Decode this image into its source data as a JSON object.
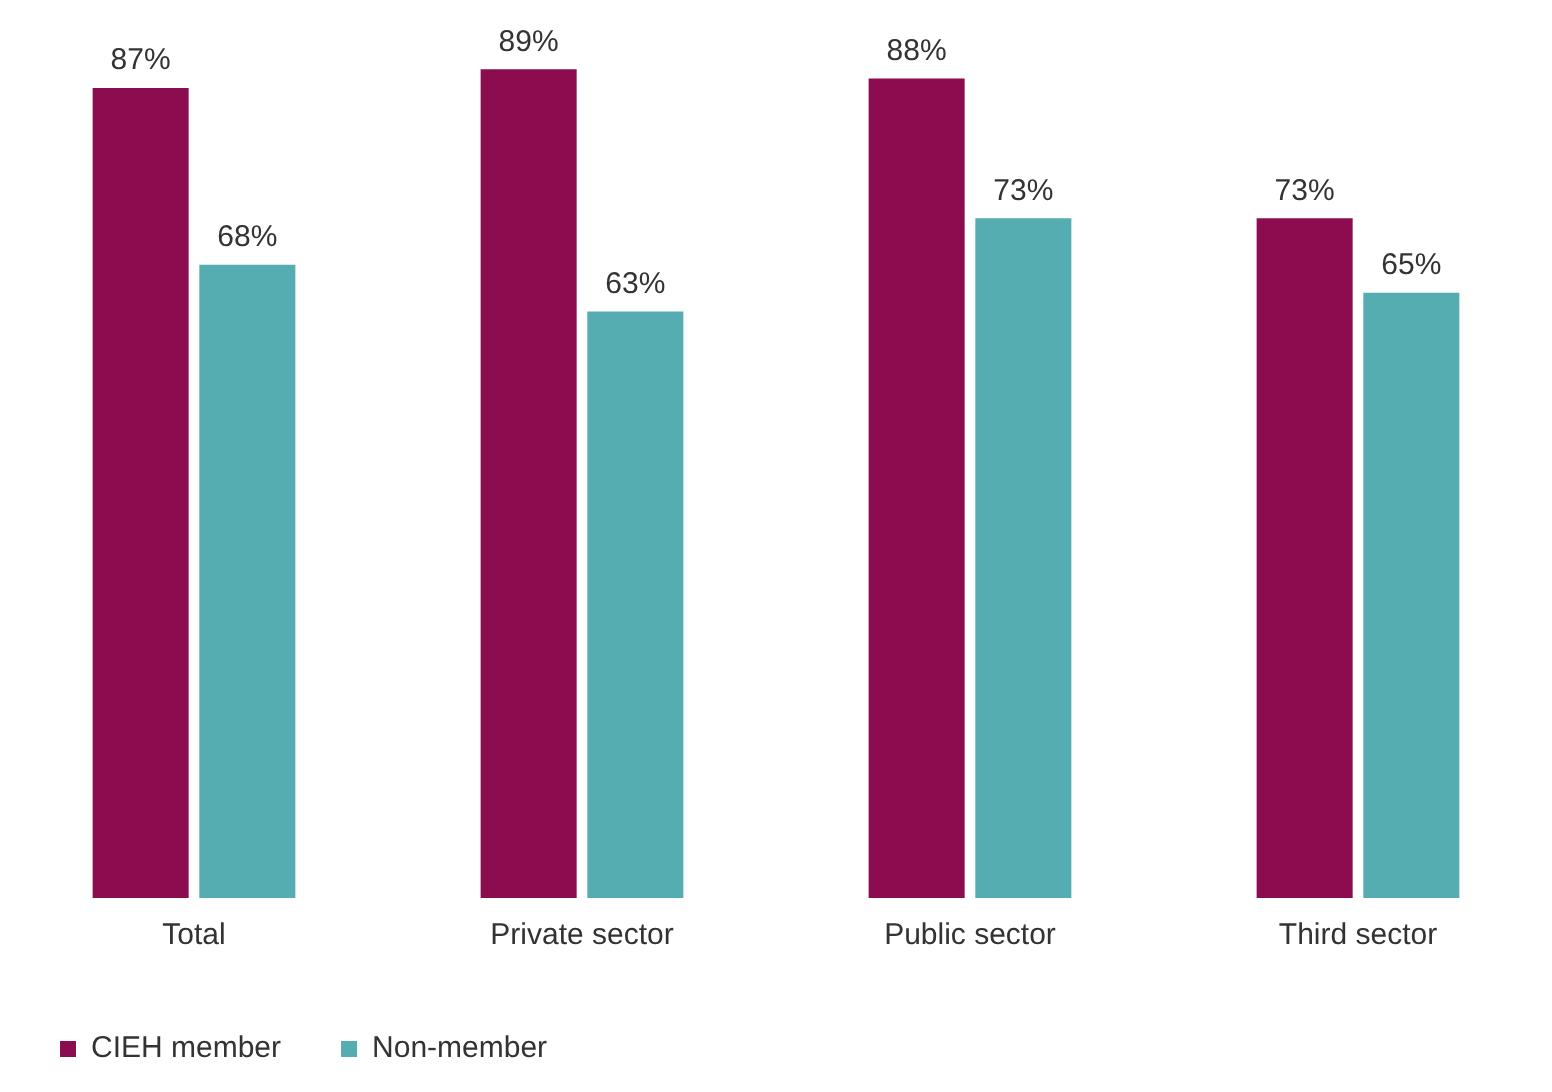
{
  "chart_data": {
    "type": "bar",
    "categories": [
      "Total",
      "Private sector",
      "Public sector",
      "Third sector"
    ],
    "series": [
      {
        "name": "CIEH member",
        "color": "#8b0d4f",
        "values": [
          87,
          89,
          88,
          73
        ],
        "value_labels": [
          "87%",
          "89%",
          "88%",
          "73%"
        ]
      },
      {
        "name": "Non-member",
        "color": "#55adb1",
        "values": [
          68,
          63,
          73,
          65
        ],
        "value_labels": [
          "68%",
          "63%",
          "73%",
          "65%"
        ]
      }
    ],
    "legend": "bottom left",
    "grid": false
  }
}
